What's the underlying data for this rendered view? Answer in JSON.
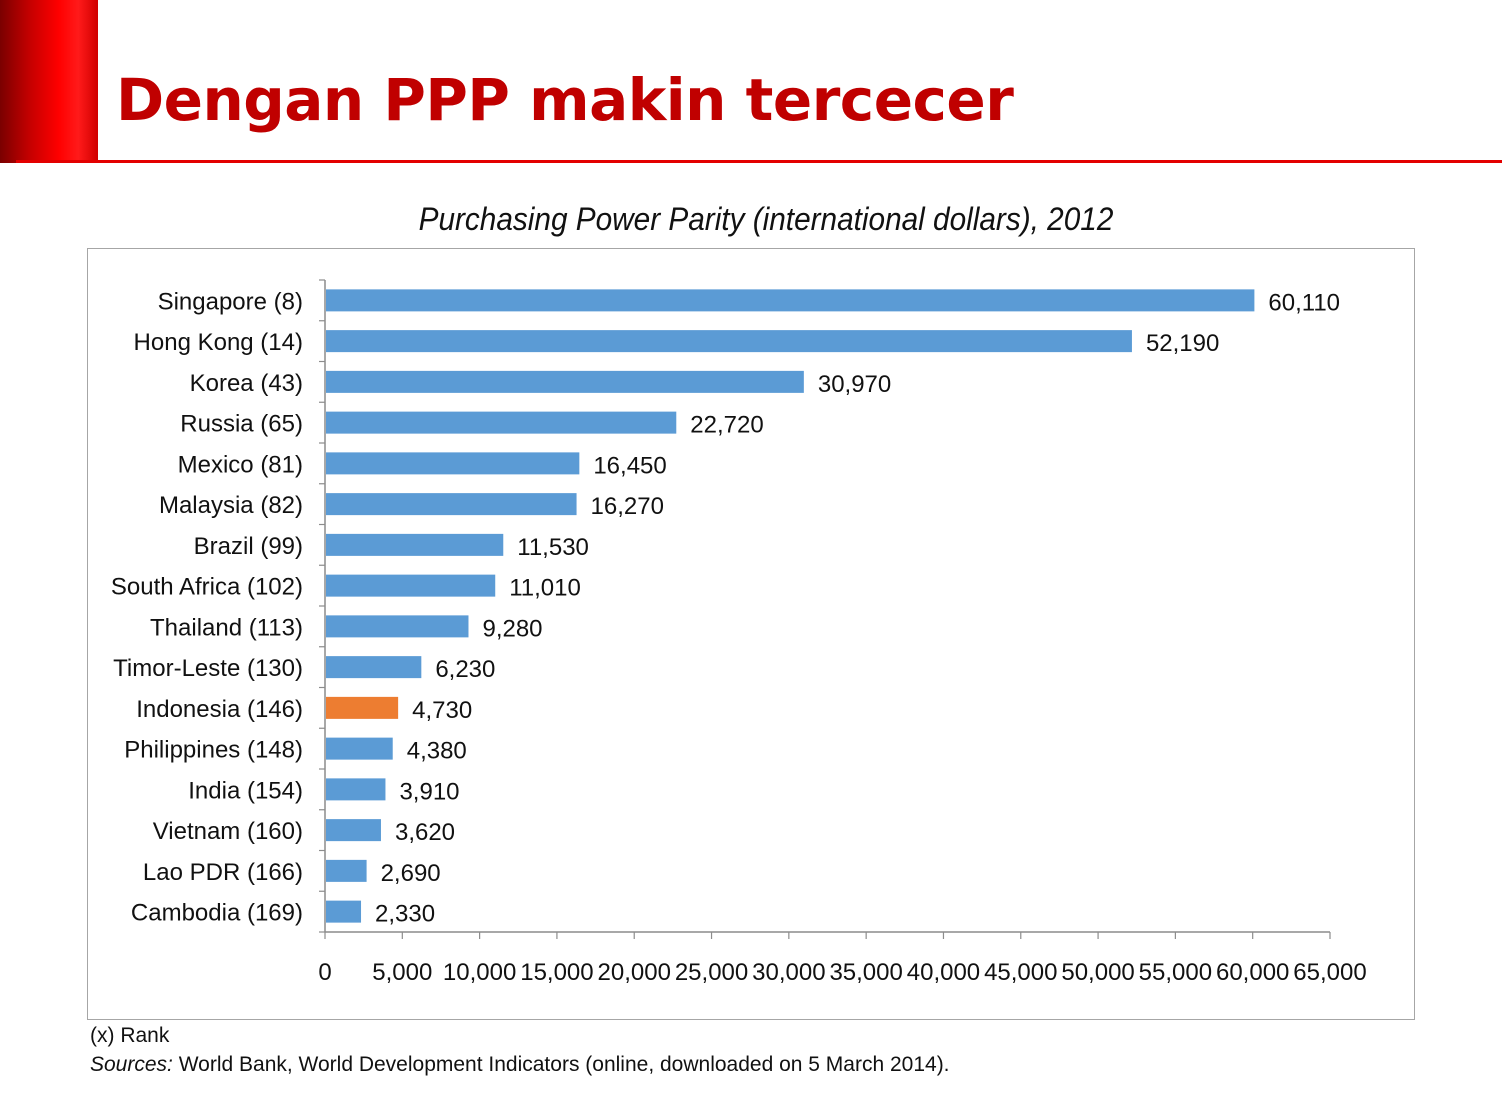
{
  "slide": {
    "title": "Dengan PPP makin tercecer"
  },
  "notes": {
    "rank": "(x) Rank",
    "sources_prefix": "Sources:",
    "sources_text": " World Bank, World Development Indicators (online, downloaded on 5 March 2014)."
  },
  "colors": {
    "title": "#c00000",
    "bar_default": "#5b9bd5",
    "bar_highlight": "#ed7d31"
  },
  "chart_data": {
    "type": "bar",
    "orientation": "horizontal",
    "title": "Purchasing Power Parity (international dollars), 2012",
    "xlabel": "",
    "ylabel": "",
    "xlim": [
      0,
      65000
    ],
    "xticks": [
      0,
      5000,
      10000,
      15000,
      20000,
      25000,
      30000,
      35000,
      40000,
      45000,
      50000,
      55000,
      60000,
      65000
    ],
    "xtick_labels": [
      "0",
      "5,000",
      "10,000",
      "15,000",
      "20,000",
      "25,000",
      "30,000",
      "35,000",
      "40,000",
      "45,000",
      "50,000",
      "55,000",
      "60,000",
      "65,000"
    ],
    "grid": false,
    "legend": "none",
    "highlight_category": "Indonesia (146)",
    "categories": [
      "Singapore (8)",
      "Hong Kong (14)",
      "Korea (43)",
      "Russia (65)",
      "Mexico (81)",
      "Malaysia (82)",
      "Brazil (99)",
      "South Africa (102)",
      "Thailand (113)",
      "Timor-Leste (130)",
      "Indonesia (146)",
      "Philippines (148)",
      "India (154)",
      "Vietnam (160)",
      "Lao PDR (166)",
      "Cambodia (169)"
    ],
    "values": [
      60110,
      52190,
      30970,
      22720,
      16450,
      16270,
      11530,
      11010,
      9280,
      6230,
      4730,
      4380,
      3910,
      3620,
      2690,
      2330
    ],
    "value_labels": [
      "60,110",
      "52,190",
      "30,970",
      "22,720",
      "16,450",
      "16,270",
      "11,530",
      "11,010",
      "9,280",
      "6,230",
      "4,730",
      "4,380",
      "3,910",
      "3,620",
      "2,690",
      "2,330"
    ]
  }
}
